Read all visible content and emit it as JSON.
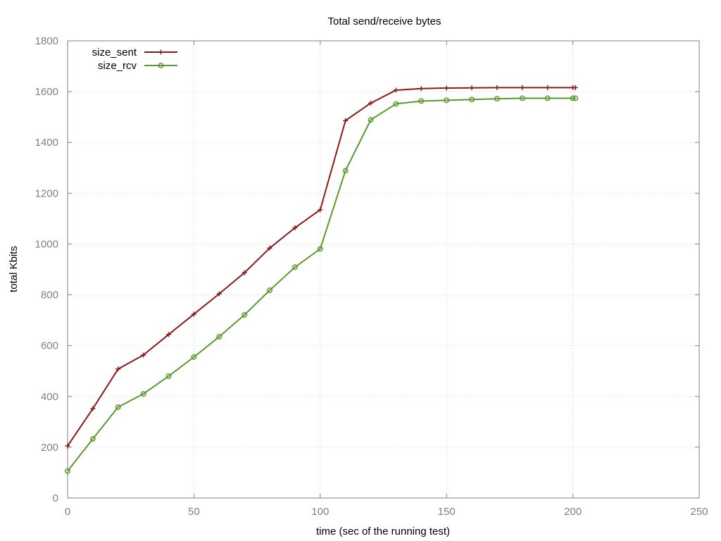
{
  "chart_data": {
    "type": "line",
    "title": "Total send/receive bytes",
    "xlabel": "time (sec of the running test)",
    "ylabel": "total Kbits",
    "xlim": [
      0,
      250
    ],
    "ylim": [
      0,
      1800
    ],
    "x_ticks": [
      0,
      50,
      100,
      150,
      200,
      250
    ],
    "y_ticks": [
      0,
      200,
      400,
      600,
      800,
      1000,
      1200,
      1400,
      1600,
      1800
    ],
    "grid": true,
    "legend_position": "top-left",
    "series": [
      {
        "name": "size_sent",
        "color": "#8b1a1a",
        "marker": "plus",
        "x": [
          0,
          10,
          20,
          30,
          40,
          50,
          60,
          70,
          80,
          90,
          100,
          110,
          120,
          130,
          140,
          150,
          160,
          170,
          180,
          190,
          200,
          201
        ],
        "y": [
          205,
          352,
          508,
          563,
          644,
          724,
          804,
          887,
          984,
          1064,
          1135,
          1486,
          1555,
          1606,
          1612,
          1614,
          1615,
          1616,
          1616,
          1616,
          1616,
          1616
        ]
      },
      {
        "name": "size_rcv",
        "color": "#5a9a2e",
        "marker": "circle",
        "x": [
          0,
          10,
          20,
          30,
          40,
          50,
          60,
          70,
          80,
          90,
          100,
          110,
          120,
          130,
          140,
          150,
          160,
          170,
          180,
          190,
          200,
          201
        ],
        "y": [
          106,
          233,
          358,
          410,
          480,
          555,
          635,
          721,
          818,
          909,
          981,
          1289,
          1489,
          1552,
          1563,
          1566,
          1569,
          1572,
          1574,
          1574,
          1574,
          1574
        ]
      }
    ]
  }
}
